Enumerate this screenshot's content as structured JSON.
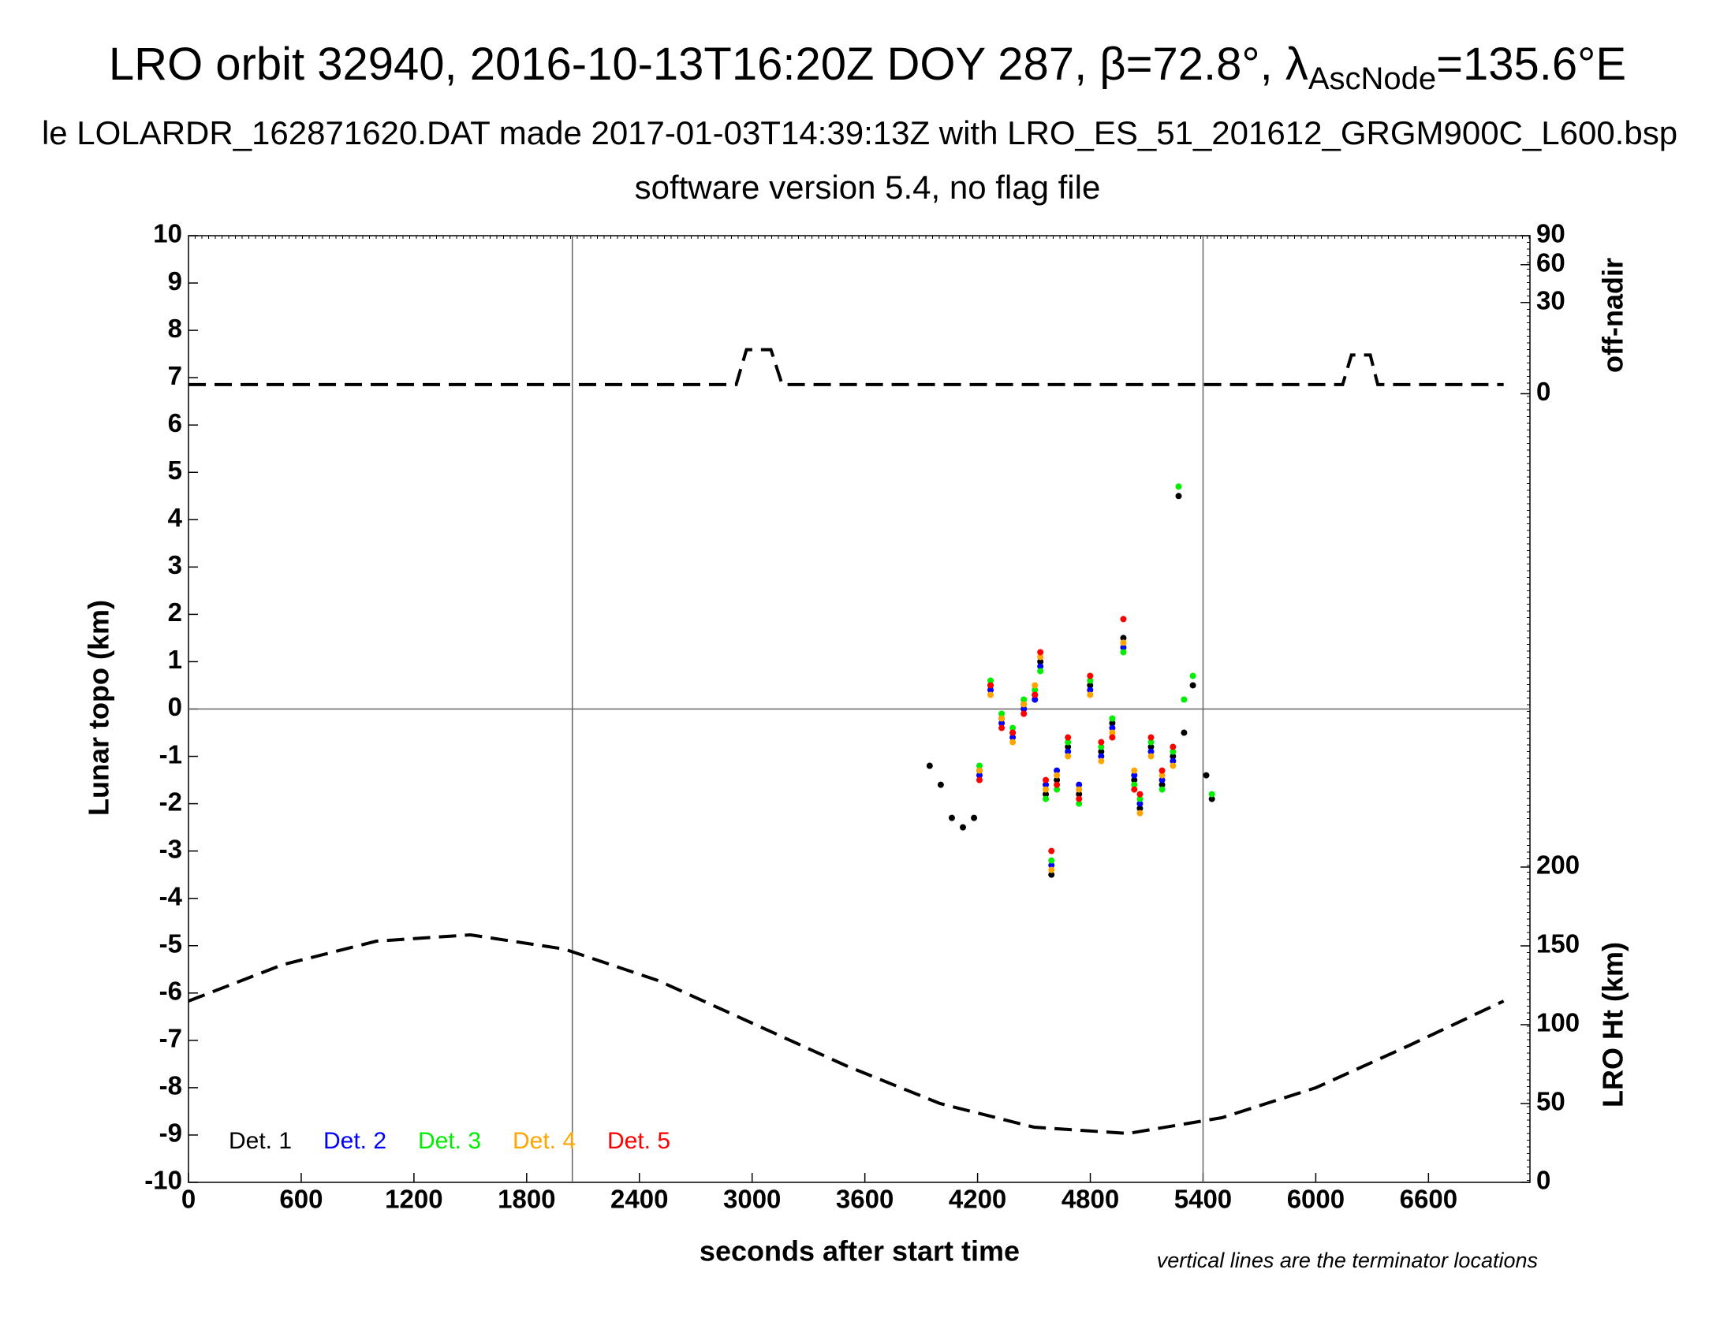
{
  "chart_data": {
    "type": "scatter",
    "title_parts": [
      "LRO orbit 32940, 2016-10-13T16:20Z DOY 287, β=72.8°, λ",
      "AscNode",
      "=135.6°E"
    ],
    "subtitle": "le LOLARDR_162871620.DAT made 2017-01-03T14:39:13Z with LRO_ES_51_201612_GRGM900C_L600.bsp",
    "subtitle2": "software version 5.4, no flag file",
    "xlabel": "seconds after start time",
    "ylabel": "Lunar topo (km)",
    "y2label": "LRO Ht (km)",
    "y3label": "off-nadir",
    "note": "vertical lines are the terminator locations",
    "xlim": [
      0,
      7140
    ],
    "xticks": [
      0,
      600,
      1200,
      1800,
      2400,
      3000,
      3600,
      4200,
      4800,
      5400,
      6000,
      6600
    ],
    "ylim": [
      -10,
      10
    ],
    "yticks": [
      -10,
      -9,
      -8,
      -7,
      -6,
      -5,
      -4,
      -3,
      -2,
      -1,
      0,
      1,
      2,
      3,
      4,
      5,
      6,
      7,
      8,
      9,
      10
    ],
    "y2lim": [
      0,
      200
    ],
    "y2ticks": [
      0,
      50,
      100,
      150,
      200
    ],
    "y3lim": [
      0,
      90
    ],
    "y3ticks": [
      0,
      30,
      60,
      90
    ],
    "y3scale": "sqrt",
    "zero_line": true,
    "terminators": [
      2043,
      5400
    ],
    "x": [
      3945,
      4004,
      4063,
      4122,
      4181,
      4210,
      4269,
      4328,
      4387,
      4446,
      4505,
      4534,
      4563,
      4593,
      4622,
      4681,
      4740,
      4799,
      4858,
      4917,
      4976,
      5034,
      5064,
      5123,
      5182,
      5240,
      5270,
      5299,
      5346,
      5417,
      5447
    ],
    "series": [
      {
        "name": "Det. 1",
        "color": "#000000",
        "values": [
          -1.2,
          -1.6,
          -2.3,
          -2.5,
          -2.3,
          -1.3,
          0.5,
          -0.2,
          -0.5,
          0.1,
          0.3,
          1.0,
          -1.8,
          -3.5,
          -1.5,
          -0.8,
          -1.8,
          0.5,
          -0.9,
          -0.3,
          1.5,
          -1.5,
          -2.1,
          -0.8,
          -1.6,
          -1.0,
          4.5,
          -0.5,
          0.5,
          -1.4,
          -1.9
        ]
      },
      {
        "name": "Det. 2",
        "color": "#0000ff",
        "values": [
          null,
          null,
          null,
          null,
          null,
          -1.4,
          0.4,
          -0.3,
          -0.6,
          0.0,
          0.2,
          0.9,
          -1.6,
          -3.3,
          -1.3,
          -0.9,
          -1.6,
          0.4,
          -1.0,
          -0.4,
          1.3,
          -1.4,
          -2.0,
          -0.9,
          -1.5,
          -1.1,
          null,
          null,
          null,
          null,
          null
        ]
      },
      {
        "name": "Det. 3",
        "color": "#00ee00",
        "values": [
          null,
          null,
          null,
          null,
          null,
          -1.2,
          0.6,
          -0.1,
          -0.4,
          0.2,
          0.4,
          0.8,
          -1.9,
          -3.2,
          -1.7,
          -0.7,
          -2.0,
          0.6,
          -0.8,
          -0.2,
          1.2,
          -1.6,
          -1.9,
          -0.7,
          -1.7,
          -0.9,
          4.7,
          0.2,
          0.7,
          null,
          -1.8
        ]
      },
      {
        "name": "Det. 4",
        "color": "#ffa500",
        "values": [
          null,
          null,
          null,
          null,
          null,
          -1.3,
          0.3,
          -0.2,
          -0.7,
          0.1,
          0.5,
          1.1,
          -1.7,
          -3.4,
          -1.4,
          -1.0,
          -1.7,
          0.3,
          -1.1,
          -0.5,
          1.4,
          -1.3,
          -2.2,
          -1.0,
          -1.4,
          -1.2,
          null,
          null,
          null,
          null,
          null
        ]
      },
      {
        "name": "Det. 5",
        "color": "#ff0000",
        "values": [
          null,
          null,
          null,
          null,
          null,
          -1.5,
          0.5,
          -0.4,
          -0.5,
          -0.1,
          0.3,
          1.2,
          -1.5,
          -3.0,
          -1.6,
          -0.6,
          -1.9,
          0.7,
          -0.7,
          -0.6,
          1.9,
          -1.7,
          -1.8,
          -0.6,
          -1.3,
          -0.8,
          null,
          null,
          null,
          null,
          null
        ]
      }
    ],
    "ht_line": {
      "axis": "y2",
      "color": "#000000",
      "x": [
        0,
        500,
        1000,
        1500,
        2000,
        2500,
        3000,
        3500,
        4000,
        4500,
        5000,
        5500,
        6000,
        6500,
        7000
      ],
      "values": [
        115,
        138,
        153,
        157,
        148,
        128,
        101,
        74,
        50,
        35,
        31,
        41,
        60,
        87,
        115
      ]
    },
    "nadir_line": {
      "axis": "y3",
      "color": "#000000",
      "x": [
        0,
        2915,
        2970,
        3100,
        3160,
        6143,
        6190,
        6290,
        6330,
        7000
      ],
      "values": [
        0.3,
        0.3,
        7,
        7,
        0.3,
        0.3,
        5.4,
        5.4,
        0.3,
        0.3
      ]
    }
  }
}
